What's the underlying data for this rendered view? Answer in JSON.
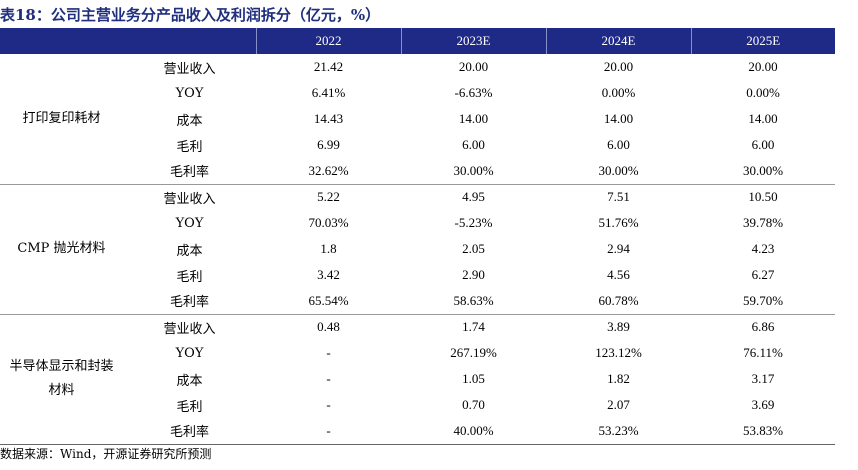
{
  "title": "表18：公司主营业务分产品收入及利润拆分（亿元，%）",
  "columns": [
    "",
    "",
    "2022",
    "2023E",
    "2024E",
    "2025E"
  ],
  "groups": [
    {
      "segment": "打印复印耗材",
      "rows": [
        {
          "metric": "营业收入",
          "values": [
            "21.42",
            "20.00",
            "20.00",
            "20.00"
          ]
        },
        {
          "metric": "YOY",
          "values": [
            "6.41%",
            "-6.63%",
            "0.00%",
            "0.00%"
          ]
        },
        {
          "metric": "成本",
          "values": [
            "14.43",
            "14.00",
            "14.00",
            "14.00"
          ]
        },
        {
          "metric": "毛利",
          "values": [
            "6.99",
            "6.00",
            "6.00",
            "6.00"
          ]
        },
        {
          "metric": "毛利率",
          "values": [
            "32.62%",
            "30.00%",
            "30.00%",
            "30.00%"
          ]
        }
      ]
    },
    {
      "segment": "CMP 抛光材料",
      "rows": [
        {
          "metric": "营业收入",
          "values": [
            "5.22",
            "4.95",
            "7.51",
            "10.50"
          ]
        },
        {
          "metric": "YOY",
          "values": [
            "70.03%",
            "-5.23%",
            "51.76%",
            "39.78%"
          ]
        },
        {
          "metric": "成本",
          "values": [
            "1.8",
            "2.05",
            "2.94",
            "4.23"
          ]
        },
        {
          "metric": "毛利",
          "values": [
            "3.42",
            "2.90",
            "4.56",
            "6.27"
          ]
        },
        {
          "metric": "毛利率",
          "values": [
            "65.54%",
            "58.63%",
            "60.78%",
            "59.70%"
          ]
        }
      ]
    },
    {
      "segment": "半导体显示和封装材料",
      "rows": [
        {
          "metric": "营业收入",
          "values": [
            "0.48",
            "1.74",
            "3.89",
            "6.86"
          ]
        },
        {
          "metric": "YOY",
          "values": [
            "-",
            "267.19%",
            "123.12%",
            "76.11%"
          ]
        },
        {
          "metric": "成本",
          "values": [
            "-",
            "1.05",
            "1.82",
            "3.17"
          ]
        },
        {
          "metric": "毛利",
          "values": [
            "-",
            "0.70",
            "2.07",
            "3.69"
          ]
        },
        {
          "metric": "毛利率",
          "values": [
            "-",
            "40.00%",
            "53.23%",
            "53.83%"
          ]
        }
      ]
    }
  ],
  "source": "数据来源：Wind，开源证券研究所预测"
}
